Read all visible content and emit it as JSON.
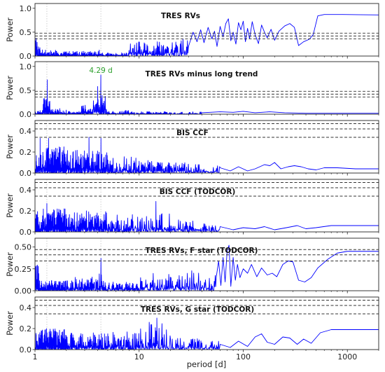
{
  "chart_data": {
    "type": "line",
    "xlabel": "period [d]",
    "xscale": "log",
    "xlim": [
      1,
      2000
    ],
    "x_ticks": [
      1,
      10,
      100,
      1000
    ],
    "x_tick_labels": [
      "1",
      "10",
      "100",
      "1000"
    ],
    "colors": {
      "series": "#0000ff",
      "fap_lines": "#333333",
      "marker_lines": "#bbbbbb",
      "annotation": "#2ca02c"
    },
    "marker_periods": [
      1.3,
      4.29
    ],
    "panels": [
      {
        "title": "TRES RVs",
        "ylabel": "Power",
        "ylim": [
          0,
          1.1
        ],
        "y_ticks": [
          0.0,
          0.5,
          1.0
        ],
        "y_tick_labels": [
          "0.0",
          "0.5",
          "1.0"
        ],
        "fap_levels": [
          0.36,
          0.42,
          0.48
        ],
        "seed": 11,
        "hi_freq": [
          [
            1.0,
            1.05,
            0.55
          ],
          [
            1.05,
            1.12,
            0.22
          ],
          [
            1.12,
            1.6,
            0.13
          ],
          [
            1.6,
            4.0,
            0.1
          ],
          [
            4.0,
            4.5,
            0.16
          ],
          [
            4.5,
            8.0,
            0.07
          ],
          [
            8.0,
            20.0,
            0.3
          ],
          [
            20.0,
            30.0,
            0.38
          ]
        ],
        "series": [
          {
            "x": 30,
            "y": 0.22
          },
          {
            "x": 33,
            "y": 0.5
          },
          {
            "x": 36,
            "y": 0.3
          },
          {
            "x": 39,
            "y": 0.55
          },
          {
            "x": 42,
            "y": 0.28
          },
          {
            "x": 46,
            "y": 0.6
          },
          {
            "x": 50,
            "y": 0.36
          },
          {
            "x": 53,
            "y": 0.52
          },
          {
            "x": 56,
            "y": 0.2
          },
          {
            "x": 60,
            "y": 0.62
          },
          {
            "x": 64,
            "y": 0.4
          },
          {
            "x": 68,
            "y": 0.68
          },
          {
            "x": 72,
            "y": 0.78
          },
          {
            "x": 76,
            "y": 0.32
          },
          {
            "x": 80,
            "y": 0.5
          },
          {
            "x": 85,
            "y": 0.25
          },
          {
            "x": 90,
            "y": 0.7
          },
          {
            "x": 95,
            "y": 0.55
          },
          {
            "x": 100,
            "y": 0.73
          },
          {
            "x": 105,
            "y": 0.3
          },
          {
            "x": 110,
            "y": 0.58
          },
          {
            "x": 115,
            "y": 0.36
          },
          {
            "x": 122,
            "y": 0.72
          },
          {
            "x": 130,
            "y": 0.45
          },
          {
            "x": 140,
            "y": 0.26
          },
          {
            "x": 150,
            "y": 0.65
          },
          {
            "x": 160,
            "y": 0.5
          },
          {
            "x": 170,
            "y": 0.38
          },
          {
            "x": 185,
            "y": 0.56
          },
          {
            "x": 200,
            "y": 0.33
          },
          {
            "x": 220,
            "y": 0.52
          },
          {
            "x": 250,
            "y": 0.63
          },
          {
            "x": 280,
            "y": 0.68
          },
          {
            "x": 310,
            "y": 0.6
          },
          {
            "x": 340,
            "y": 0.22
          },
          {
            "x": 380,
            "y": 0.3
          },
          {
            "x": 430,
            "y": 0.35
          },
          {
            "x": 470,
            "y": 0.45
          },
          {
            "x": 520,
            "y": 0.84
          },
          {
            "x": 600,
            "y": 0.87
          },
          {
            "x": 900,
            "y": 0.87
          },
          {
            "x": 2000,
            "y": 0.86
          }
        ]
      },
      {
        "title": "TRES RVs minus long trend",
        "ylabel": "Power",
        "ylim": [
          0,
          1.1
        ],
        "y_ticks": [
          0.0,
          0.5,
          1.0
        ],
        "y_tick_labels": [
          "0.0",
          "0.5",
          "1.0"
        ],
        "fap_levels": [
          0.36,
          0.42,
          0.48
        ],
        "annotation": {
          "text": "4.29 d",
          "x": 4.29
        },
        "seed": 23,
        "hi_freq": [
          [
            1.0,
            1.2,
            0.08
          ],
          [
            1.2,
            1.4,
            0.35
          ],
          [
            1.4,
            2.0,
            0.12
          ],
          [
            2.0,
            2.8,
            0.06
          ],
          [
            2.8,
            3.6,
            0.22
          ],
          [
            3.6,
            5.0,
            0.45
          ],
          [
            5.0,
            8.0,
            0.08
          ],
          [
            8.0,
            20.0,
            0.06
          ],
          [
            20.0,
            40.0,
            0.05
          ]
        ],
        "peaks": [
          {
            "x": 1.31,
            "y": 0.72
          },
          {
            "x": 4.29,
            "y": 0.82
          },
          {
            "x": 4.0,
            "y": 0.58
          }
        ],
        "series": [
          {
            "x": 40,
            "y": 0.03
          },
          {
            "x": 60,
            "y": 0.05
          },
          {
            "x": 80,
            "y": 0.04
          },
          {
            "x": 100,
            "y": 0.06
          },
          {
            "x": 130,
            "y": 0.03
          },
          {
            "x": 180,
            "y": 0.05
          },
          {
            "x": 250,
            "y": 0.03
          },
          {
            "x": 400,
            "y": 0.02
          },
          {
            "x": 800,
            "y": 0.02
          },
          {
            "x": 2000,
            "y": 0.02
          }
        ]
      },
      {
        "title": "BIS CCF",
        "ylabel": "Power",
        "ylim": [
          0,
          0.5
        ],
        "y_ticks": [
          0.0,
          0.2,
          0.4
        ],
        "y_tick_labels": [
          "0.0",
          "0.2",
          "0.4"
        ],
        "fap_levels": [
          0.34,
          0.42,
          0.47
        ],
        "seed": 37,
        "hi_freq": [
          [
            1.0,
            2.0,
            0.26
          ],
          [
            2.0,
            5.0,
            0.22
          ],
          [
            5.0,
            10.0,
            0.16
          ],
          [
            10.0,
            20.0,
            0.12
          ],
          [
            20.0,
            40.0,
            0.1
          ],
          [
            40.0,
            60.0,
            0.07
          ]
        ],
        "peaks": [
          {
            "x": 1.12,
            "y": 0.33
          },
          {
            "x": 1.35,
            "y": 0.33
          },
          {
            "x": 3.3,
            "y": 0.34
          },
          {
            "x": 4.3,
            "y": 0.33
          }
        ],
        "series": [
          {
            "x": 60,
            "y": 0.05
          },
          {
            "x": 75,
            "y": 0.02
          },
          {
            "x": 90,
            "y": 0.06
          },
          {
            "x": 110,
            "y": 0.02
          },
          {
            "x": 130,
            "y": 0.04
          },
          {
            "x": 160,
            "y": 0.08
          },
          {
            "x": 180,
            "y": 0.07
          },
          {
            "x": 200,
            "y": 0.1
          },
          {
            "x": 230,
            "y": 0.04
          },
          {
            "x": 270,
            "y": 0.06
          },
          {
            "x": 310,
            "y": 0.07
          },
          {
            "x": 360,
            "y": 0.06
          },
          {
            "x": 420,
            "y": 0.04
          },
          {
            "x": 500,
            "y": 0.03
          },
          {
            "x": 600,
            "y": 0.05
          },
          {
            "x": 800,
            "y": 0.05
          },
          {
            "x": 1200,
            "y": 0.04
          },
          {
            "x": 2000,
            "y": 0.04
          }
        ]
      },
      {
        "title": "BIS CCF (TODCOR)",
        "ylabel": "Power",
        "ylim": [
          0,
          0.5
        ],
        "y_ticks": [
          0.0,
          0.2,
          0.4
        ],
        "y_tick_labels": [
          "0.0",
          "0.2",
          "0.4"
        ],
        "fap_levels": [
          0.34,
          0.42,
          0.47
        ],
        "seed": 53,
        "hi_freq": [
          [
            1.0,
            2.0,
            0.22
          ],
          [
            2.0,
            5.0,
            0.2
          ],
          [
            5.0,
            10.0,
            0.17
          ],
          [
            10.0,
            20.0,
            0.18
          ],
          [
            20.0,
            40.0,
            0.12
          ],
          [
            40.0,
            60.0,
            0.08
          ]
        ],
        "peaks": [
          {
            "x": 14.5,
            "y": 0.29
          },
          {
            "x": 1.3,
            "y": 0.27
          }
        ],
        "series": [
          {
            "x": 60,
            "y": 0.05
          },
          {
            "x": 80,
            "y": 0.02
          },
          {
            "x": 100,
            "y": 0.04
          },
          {
            "x": 130,
            "y": 0.03
          },
          {
            "x": 160,
            "y": 0.05
          },
          {
            "x": 200,
            "y": 0.02
          },
          {
            "x": 260,
            "y": 0.04
          },
          {
            "x": 330,
            "y": 0.06
          },
          {
            "x": 400,
            "y": 0.03
          },
          {
            "x": 500,
            "y": 0.04
          },
          {
            "x": 700,
            "y": 0.06
          },
          {
            "x": 1200,
            "y": 0.06
          },
          {
            "x": 2000,
            "y": 0.06
          }
        ]
      },
      {
        "title": "TRES RVs, F star (TODCOR)",
        "ylabel": "Power",
        "ylim": [
          0,
          0.6
        ],
        "y_ticks": [
          0.0,
          0.25,
          0.5
        ],
        "y_tick_labels": [
          "0.00",
          "0.25",
          "0.50"
        ],
        "fap_levels": [
          0.34,
          0.41,
          0.47
        ],
        "seed": 71,
        "hi_freq": [
          [
            1.0,
            1.1,
            0.3
          ],
          [
            1.1,
            2.0,
            0.12
          ],
          [
            2.0,
            4.0,
            0.16
          ],
          [
            4.0,
            4.6,
            0.25
          ],
          [
            4.6,
            10.0,
            0.1
          ],
          [
            10.0,
            30.0,
            0.2
          ],
          [
            30.0,
            55.0,
            0.25
          ]
        ],
        "peaks": [
          {
            "x": 4.3,
            "y": 0.37
          }
        ],
        "series": [
          {
            "x": 55,
            "y": 0.15
          },
          {
            "x": 58,
            "y": 0.34
          },
          {
            "x": 61,
            "y": 0.06
          },
          {
            "x": 64,
            "y": 0.38
          },
          {
            "x": 67,
            "y": 0.1
          },
          {
            "x": 70,
            "y": 0.45
          },
          {
            "x": 73,
            "y": 0.52
          },
          {
            "x": 76,
            "y": 0.05
          },
          {
            "x": 80,
            "y": 0.38
          },
          {
            "x": 84,
            "y": 0.12
          },
          {
            "x": 88,
            "y": 0.3
          },
          {
            "x": 93,
            "y": 0.15
          },
          {
            "x": 100,
            "y": 0.25
          },
          {
            "x": 110,
            "y": 0.2
          },
          {
            "x": 120,
            "y": 0.3
          },
          {
            "x": 135,
            "y": 0.16
          },
          {
            "x": 150,
            "y": 0.26
          },
          {
            "x": 170,
            "y": 0.18
          },
          {
            "x": 190,
            "y": 0.2
          },
          {
            "x": 210,
            "y": 0.16
          },
          {
            "x": 240,
            "y": 0.3
          },
          {
            "x": 270,
            "y": 0.34
          },
          {
            "x": 300,
            "y": 0.33
          },
          {
            "x": 340,
            "y": 0.12
          },
          {
            "x": 390,
            "y": 0.1
          },
          {
            "x": 450,
            "y": 0.15
          },
          {
            "x": 520,
            "y": 0.26
          },
          {
            "x": 650,
            "y": 0.36
          },
          {
            "x": 800,
            "y": 0.43
          },
          {
            "x": 1000,
            "y": 0.45
          },
          {
            "x": 2000,
            "y": 0.45
          }
        ]
      },
      {
        "title": "TRES RVs, G star (TODCOR)",
        "ylabel": "Power",
        "ylim": [
          0,
          0.5
        ],
        "y_ticks": [
          0.0,
          0.2,
          0.4
        ],
        "y_tick_labels": [
          "0.0",
          "0.2",
          "0.4"
        ],
        "fap_levels": [
          0.34,
          0.42,
          0.47
        ],
        "seed": 97,
        "hi_freq": [
          [
            1.0,
            2.0,
            0.2
          ],
          [
            2.0,
            5.0,
            0.16
          ],
          [
            5.0,
            10.0,
            0.17
          ],
          [
            10.0,
            20.0,
            0.25
          ],
          [
            20.0,
            40.0,
            0.12
          ],
          [
            40.0,
            60.0,
            0.08
          ]
        ],
        "peaks": [
          {
            "x": 14.8,
            "y": 0.3
          },
          {
            "x": 12.5,
            "y": 0.26
          }
        ],
        "series": [
          {
            "x": 60,
            "y": 0.05
          },
          {
            "x": 75,
            "y": 0.02
          },
          {
            "x": 90,
            "y": 0.08
          },
          {
            "x": 110,
            "y": 0.03
          },
          {
            "x": 130,
            "y": 0.12
          },
          {
            "x": 150,
            "y": 0.15
          },
          {
            "x": 170,
            "y": 0.07
          },
          {
            "x": 200,
            "y": 0.05
          },
          {
            "x": 240,
            "y": 0.12
          },
          {
            "x": 280,
            "y": 0.11
          },
          {
            "x": 330,
            "y": 0.05
          },
          {
            "x": 380,
            "y": 0.1
          },
          {
            "x": 450,
            "y": 0.06
          },
          {
            "x": 550,
            "y": 0.16
          },
          {
            "x": 700,
            "y": 0.19
          },
          {
            "x": 1000,
            "y": 0.19
          },
          {
            "x": 2000,
            "y": 0.19
          }
        ]
      }
    ]
  }
}
